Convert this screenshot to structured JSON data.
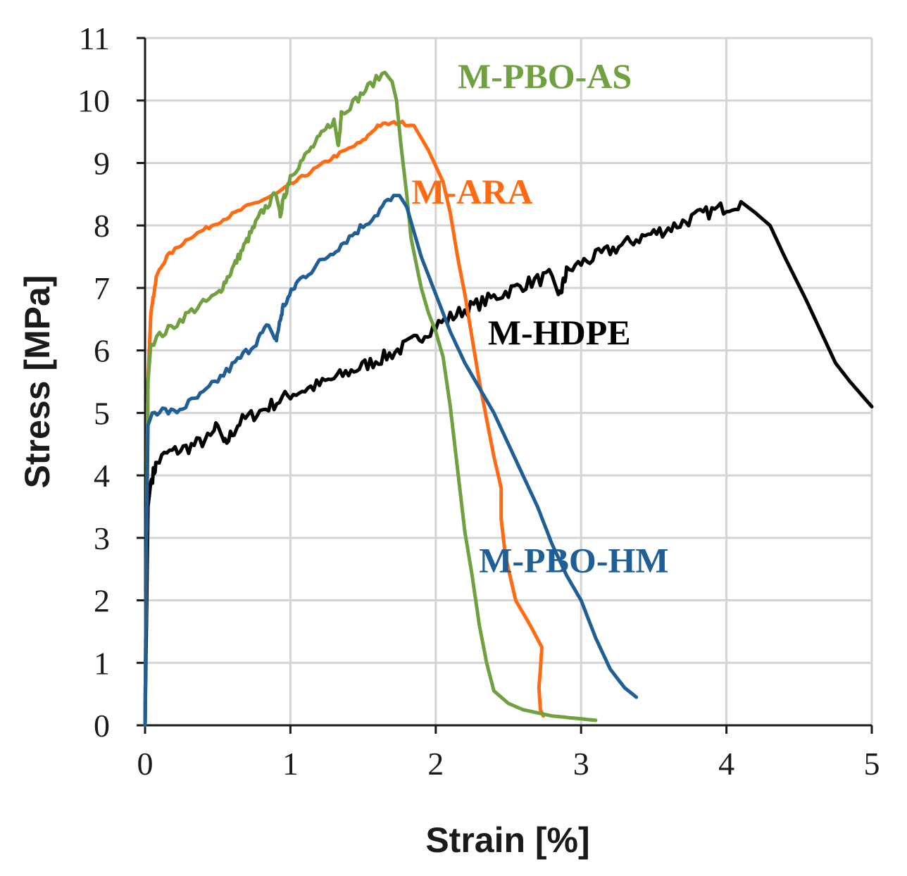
{
  "chart_data": {
    "type": "line",
    "title": "",
    "xlabel": "Strain [%]",
    "ylabel": "Stress [MPa]",
    "xlim": [
      0,
      5
    ],
    "ylim": [
      0,
      11
    ],
    "xticks": [
      "0",
      "1",
      "2",
      "3",
      "4",
      "5"
    ],
    "yticks": [
      "0",
      "1",
      "2",
      "3",
      "4",
      "5",
      "6",
      "7",
      "8",
      "9",
      "10",
      "11"
    ],
    "grid": true,
    "series": [
      {
        "name": "M-HDPE",
        "color": "#000000",
        "points": [
          [
            0,
            0
          ],
          [
            0.02,
            3.5
          ],
          [
            0.04,
            3.9
          ],
          [
            0.08,
            4.2
          ],
          [
            0.15,
            4.35
          ],
          [
            0.3,
            4.45
          ],
          [
            0.45,
            4.6
          ],
          [
            0.5,
            4.8
          ],
          [
            0.55,
            4.5
          ],
          [
            0.65,
            4.85
          ],
          [
            0.85,
            5.1
          ],
          [
            1.0,
            5.3
          ],
          [
            1.2,
            5.45
          ],
          [
            1.4,
            5.65
          ],
          [
            1.55,
            5.8
          ],
          [
            1.7,
            5.95
          ],
          [
            1.85,
            6.15
          ],
          [
            2.0,
            6.4
          ],
          [
            2.2,
            6.65
          ],
          [
            2.4,
            6.85
          ],
          [
            2.6,
            7.05
          ],
          [
            2.8,
            7.2
          ],
          [
            2.85,
            6.85
          ],
          [
            2.9,
            7.25
          ],
          [
            3.0,
            7.4
          ],
          [
            3.2,
            7.6
          ],
          [
            3.4,
            7.8
          ],
          [
            3.6,
            7.95
          ],
          [
            3.8,
            8.15
          ],
          [
            4.0,
            8.3
          ],
          [
            4.1,
            8.38
          ],
          [
            4.2,
            8.2
          ],
          [
            4.3,
            8.0
          ],
          [
            4.4,
            7.5
          ],
          [
            4.55,
            6.8
          ],
          [
            4.65,
            6.3
          ],
          [
            4.75,
            5.8
          ],
          [
            4.85,
            5.5
          ],
          [
            5.0,
            5.1
          ]
        ]
      },
      {
        "name": "M-ARA",
        "color": "#ff6a13",
        "points": [
          [
            0,
            0
          ],
          [
            0.01,
            3.0
          ],
          [
            0.02,
            5.5
          ],
          [
            0.04,
            6.6
          ],
          [
            0.08,
            7.2
          ],
          [
            0.15,
            7.5
          ],
          [
            0.3,
            7.8
          ],
          [
            0.5,
            8.05
          ],
          [
            0.7,
            8.3
          ],
          [
            0.9,
            8.5
          ],
          [
            1.1,
            8.8
          ],
          [
            1.3,
            9.1
          ],
          [
            1.5,
            9.35
          ],
          [
            1.6,
            9.6
          ],
          [
            1.75,
            9.65
          ],
          [
            1.85,
            9.6
          ],
          [
            1.95,
            9.2
          ],
          [
            2.05,
            8.7
          ],
          [
            2.1,
            8.2
          ],
          [
            2.15,
            7.5
          ],
          [
            2.2,
            6.9
          ],
          [
            2.25,
            6.2
          ],
          [
            2.3,
            5.5
          ],
          [
            2.35,
            4.9
          ],
          [
            2.4,
            4.3
          ],
          [
            2.45,
            3.8
          ],
          [
            2.45,
            3.3
          ],
          [
            2.48,
            2.7
          ],
          [
            2.55,
            2.0
          ],
          [
            2.65,
            1.6
          ],
          [
            2.73,
            1.25
          ],
          [
            2.72,
            0.9
          ],
          [
            2.71,
            0.6
          ],
          [
            2.72,
            0.25
          ],
          [
            2.74,
            0.15
          ]
        ]
      },
      {
        "name": "M-PBO-AS",
        "color": "#70a040",
        "points": [
          [
            0,
            0
          ],
          [
            0.01,
            3.0
          ],
          [
            0.02,
            5.5
          ],
          [
            0.04,
            6.1
          ],
          [
            0.08,
            6.2
          ],
          [
            0.2,
            6.4
          ],
          [
            0.3,
            6.6
          ],
          [
            0.5,
            6.9
          ],
          [
            0.6,
            7.3
          ],
          [
            0.7,
            7.75
          ],
          [
            0.8,
            8.2
          ],
          [
            0.9,
            8.5
          ],
          [
            0.93,
            8.2
          ],
          [
            1.0,
            8.8
          ],
          [
            1.1,
            9.1
          ],
          [
            1.2,
            9.4
          ],
          [
            1.3,
            9.7
          ],
          [
            1.33,
            9.25
          ],
          [
            1.35,
            9.8
          ],
          [
            1.45,
            10.0
          ],
          [
            1.55,
            10.25
          ],
          [
            1.65,
            10.45
          ],
          [
            1.7,
            10.3
          ],
          [
            1.73,
            10.0
          ],
          [
            1.76,
            9.3
          ],
          [
            1.8,
            8.5
          ],
          [
            1.83,
            7.8
          ],
          [
            1.9,
            7.0
          ],
          [
            1.95,
            6.6
          ],
          [
            2.0,
            6.3
          ],
          [
            2.05,
            5.9
          ],
          [
            2.1,
            5.1
          ],
          [
            2.15,
            4.1
          ],
          [
            2.2,
            3.1
          ],
          [
            2.25,
            2.4
          ],
          [
            2.3,
            1.6
          ],
          [
            2.35,
            1.0
          ],
          [
            2.4,
            0.55
          ],
          [
            2.5,
            0.35
          ],
          [
            2.6,
            0.25
          ],
          [
            2.8,
            0.15
          ],
          [
            3.1,
            0.08
          ]
        ]
      },
      {
        "name": "M-PBO-HM",
        "color": "#1f5f96",
        "points": [
          [
            0,
            0
          ],
          [
            0.01,
            3.0
          ],
          [
            0.02,
            4.8
          ],
          [
            0.05,
            5.0
          ],
          [
            0.1,
            5.05
          ],
          [
            0.2,
            5.0
          ],
          [
            0.4,
            5.3
          ],
          [
            0.6,
            5.75
          ],
          [
            0.75,
            6.1
          ],
          [
            0.85,
            6.4
          ],
          [
            0.9,
            6.15
          ],
          [
            0.95,
            6.7
          ],
          [
            1.05,
            7.1
          ],
          [
            1.2,
            7.4
          ],
          [
            1.35,
            7.7
          ],
          [
            1.5,
            8.0
          ],
          [
            1.6,
            8.2
          ],
          [
            1.65,
            8.35
          ],
          [
            1.75,
            8.48
          ],
          [
            1.8,
            8.3
          ],
          [
            1.85,
            7.9
          ],
          [
            1.9,
            7.5
          ],
          [
            2.0,
            6.9
          ],
          [
            2.1,
            6.3
          ],
          [
            2.2,
            5.8
          ],
          [
            2.3,
            5.4
          ],
          [
            2.4,
            5.0
          ],
          [
            2.5,
            4.5
          ],
          [
            2.6,
            4.0
          ],
          [
            2.7,
            3.5
          ],
          [
            2.8,
            2.9
          ],
          [
            2.9,
            2.4
          ],
          [
            3.0,
            2.0
          ],
          [
            3.1,
            1.4
          ],
          [
            3.2,
            0.9
          ],
          [
            3.3,
            0.6
          ],
          [
            3.38,
            0.45
          ]
        ]
      }
    ],
    "annotations": [
      {
        "text": "M-PBO-AS",
        "series": "M-PBO-AS",
        "x": 2.75,
        "y": 10.2
      },
      {
        "text": "M-ARA",
        "series": "M-ARA",
        "x": 2.25,
        "y": 8.35
      },
      {
        "text": "M-HDPE",
        "series": "M-HDPE",
        "x": 2.85,
        "y": 6.1
      },
      {
        "text": "M-PBO-HM",
        "series": "M-PBO-HM",
        "x": 2.95,
        "y": 2.45
      }
    ]
  }
}
